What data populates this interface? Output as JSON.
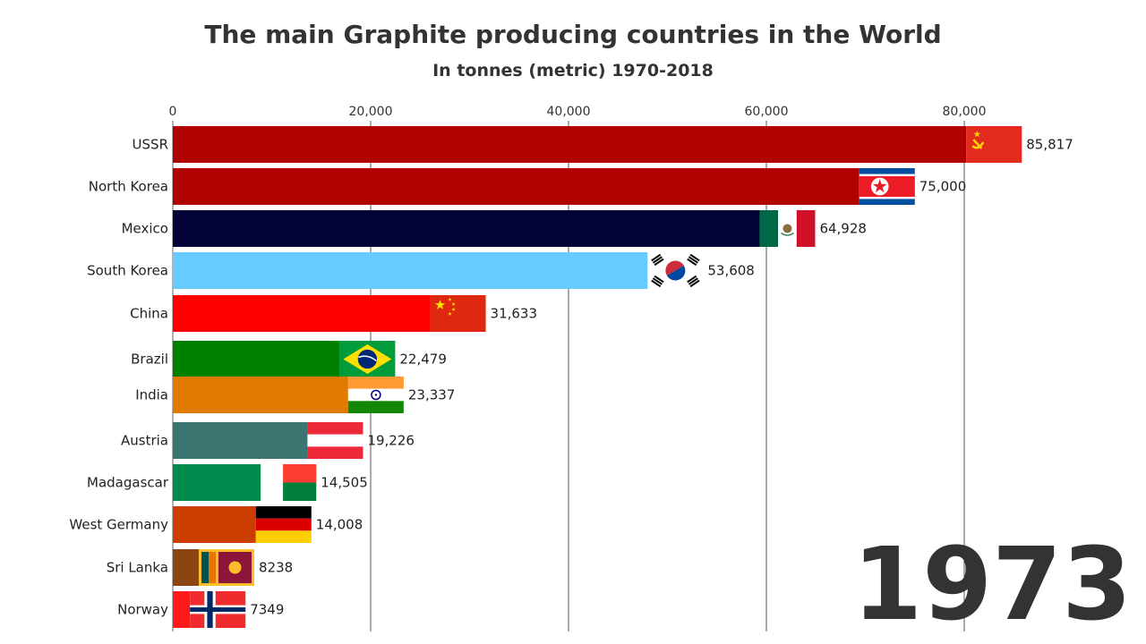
{
  "chart_data": {
    "type": "bar",
    "orientation": "horizontal",
    "title": "The main Graphite producing countries in the World",
    "subtitle": "In tonnes (metric) 1970-2018",
    "year": "1973",
    "xlim": [
      0,
      90000
    ],
    "ticks": [
      {
        "value": 0,
        "label": "0"
      },
      {
        "value": 20000,
        "label": "20,000"
      },
      {
        "value": 40000,
        "label": "40,000"
      },
      {
        "value": 60000,
        "label": "60,000"
      },
      {
        "value": 80000,
        "label": "80,000"
      }
    ],
    "grid": true,
    "bars": [
      {
        "name": "USSR",
        "value": 85817,
        "label": "85,817",
        "color": "#b00000",
        "flag": "ussr-flag-icon"
      },
      {
        "name": "North Korea",
        "value": 75000,
        "label": "75,000",
        "color": "#b00000",
        "flag": "north-korea-flag-icon"
      },
      {
        "name": "Mexico",
        "value": 64928,
        "label": "64,928",
        "color": "#020236",
        "flag": "mexico-flag-icon"
      },
      {
        "name": "South Korea",
        "value": 53608,
        "label": "53,608",
        "color": "#66ccff",
        "flag": "south-korea-flag-icon"
      },
      {
        "name": "China",
        "value": 31633,
        "label": "31,633",
        "color": "#ff0000",
        "flag": "china-flag-icon"
      },
      {
        "name": "Brazil",
        "value": 22479,
        "label": "22,479",
        "color": "#008000",
        "flag": "brazil-flag-icon"
      },
      {
        "name": "India",
        "value": 23337,
        "label": "23,337",
        "color": "#e07b00",
        "flag": "india-flag-icon"
      },
      {
        "name": "Austria",
        "value": 19226,
        "label": "19,226",
        "color": "#3a7572",
        "flag": "austria-flag-icon"
      },
      {
        "name": "Madagascar",
        "value": 14505,
        "label": "14,505",
        "color": "#008a4b",
        "flag": "madagascar-flag-icon"
      },
      {
        "name": "West Germany",
        "value": 14008,
        "label": "14,008",
        "color": "#cc3d00",
        "flag": "west-germany-flag-icon"
      },
      {
        "name": "Sri Lanka",
        "value": 8238,
        "label": "8238",
        "color": "#8b4513",
        "flag": "sri-lanka-flag-icon"
      },
      {
        "name": "Norway",
        "value": 7349,
        "label": "7349",
        "color": "#ff1a1a",
        "flag": "norway-flag-icon"
      }
    ]
  }
}
